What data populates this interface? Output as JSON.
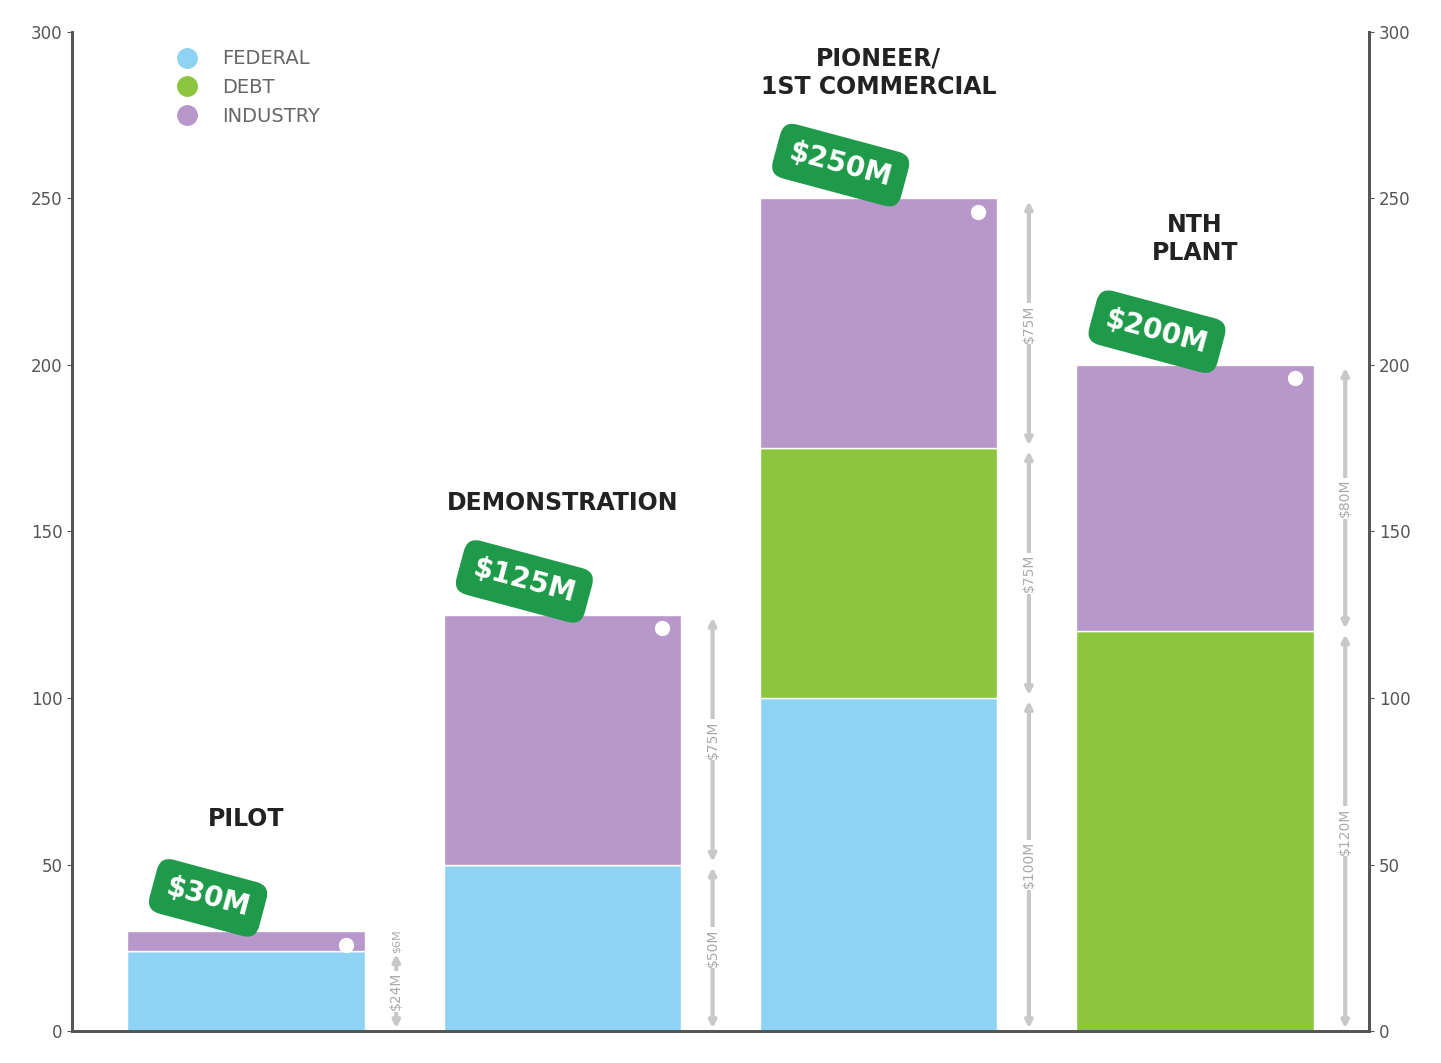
{
  "chart_data": {
    "type": "bar",
    "stacked": true,
    "categories": [
      "PILOT",
      "DEMONSTRATION",
      "PIONEER/\n1ST COMMERCIAL",
      "NTH\nPLANT"
    ],
    "series": [
      {
        "name": "FEDERAL",
        "color": "#8fd3f4",
        "values": [
          24,
          50,
          100,
          0
        ],
        "value_labels": [
          "$24M",
          "$50M",
          "$100M",
          null
        ]
      },
      {
        "name": "DEBT",
        "color": "#8cc63f",
        "values": [
          0,
          0,
          75,
          120
        ],
        "value_labels": [
          null,
          null,
          "$75M",
          "$120M"
        ]
      },
      {
        "name": "INDUSTRY",
        "color": "#b897ca",
        "values": [
          6,
          75,
          75,
          80
        ],
        "value_labels": [
          "$6M",
          "$75M",
          "$75M",
          "$80M"
        ]
      }
    ],
    "totals": [
      30,
      125,
      250,
      200
    ],
    "total_labels": [
      "$30M",
      "$125M",
      "$250M",
      "$200M"
    ],
    "ylim": [
      0,
      300
    ],
    "yticks": [
      0,
      50,
      100,
      150,
      200,
      250,
      300
    ],
    "y2lim": [
      0,
      300
    ],
    "y2ticks": [
      0,
      50,
      100,
      150,
      200,
      250,
      300
    ],
    "legend": "upper left",
    "data_labels": true,
    "tick_labels": "y",
    "grid": false
  }
}
